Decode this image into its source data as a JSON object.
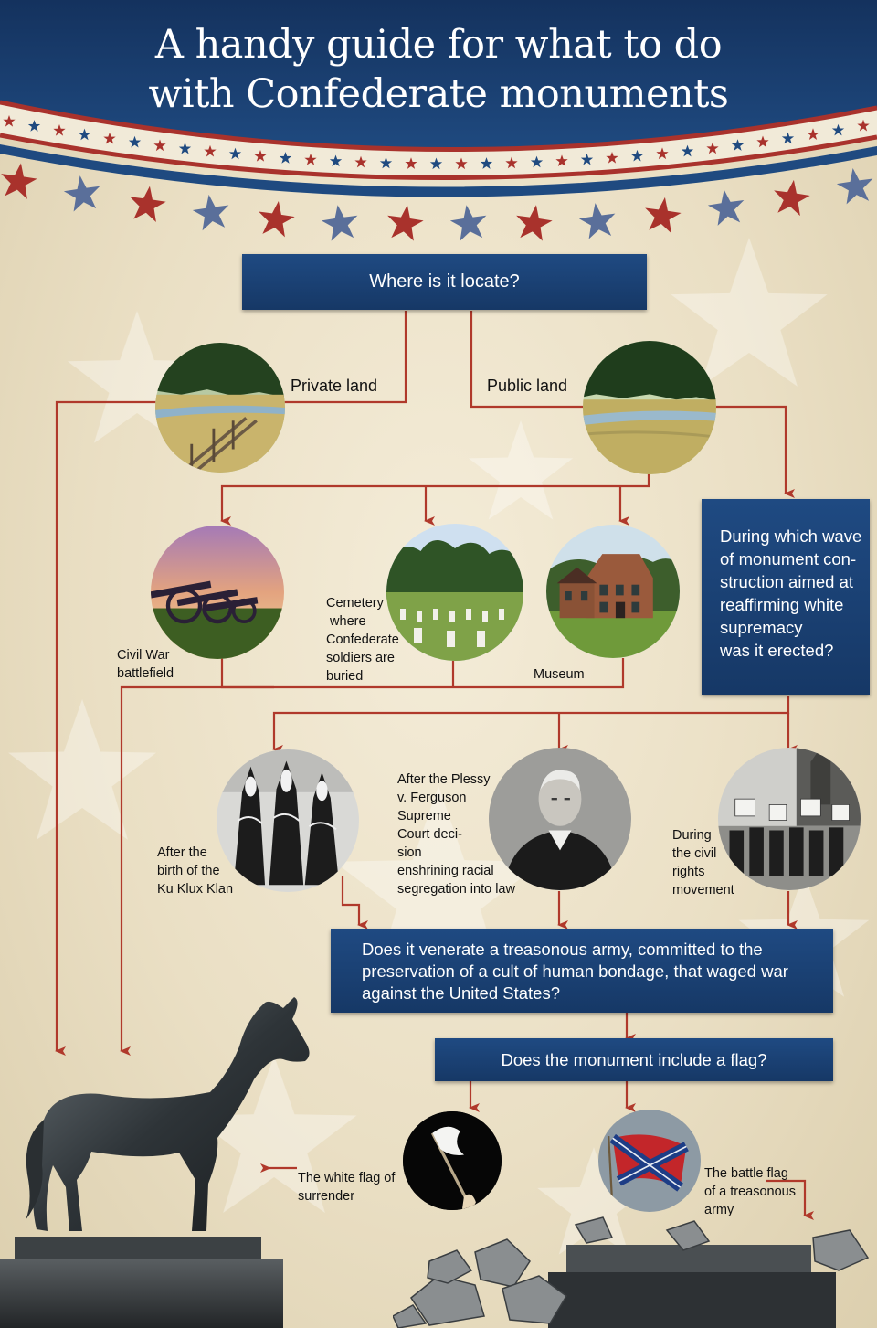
{
  "title": {
    "line1": "A handy guide for what to do",
    "line2": "with Confederate monuments"
  },
  "colors": {
    "navy": "#1b3f72",
    "arrow": "#b0392b",
    "banner_red": "#a9322c",
    "star_blue": "#5a6f9a"
  },
  "questions": {
    "location": "Where is it locate?",
    "wave": [
      "During which wave",
      "of monument con-",
      "struction aimed at",
      "reaffirming white",
      "supremacy",
      "was it erected?"
    ],
    "venerate": [
      "Does it venerate a treasonous army, committed to the",
      "preservation of a cult of human bondage, that waged war",
      "against the United States?"
    ],
    "flag": "Does the monument include a flag?"
  },
  "options": {
    "private_land": "Private land",
    "public_land": "Public land",
    "battlefield": [
      "Civil War",
      "battlefield"
    ],
    "cemetery": [
      "Cemetery",
      " where",
      "Confederate",
      "soldiers are",
      "buried"
    ],
    "museum": "Museum",
    "klan": [
      "After the",
      "birth of the",
      "Ku Klux Klan"
    ],
    "plessy": [
      "After the Plessy",
      "v. Ferguson",
      "Supreme",
      "Court deci-",
      "sion",
      "enshrining racial",
      "segregation into law"
    ],
    "civil_rights": [
      "During",
      "the civil",
      "rights",
      "movement"
    ],
    "white_flag": [
      "The white flag of",
      "surrender"
    ],
    "battle_flag": [
      "The battle flag",
      "of a treasonous",
      "army"
    ]
  },
  "icons": [
    "horse-statue-icon",
    "rubble-icon",
    "star-icon",
    "field-photo-icon",
    "cannon-photo-icon",
    "cemetery-photo-icon",
    "museum-photo-icon",
    "klan-photo-icon",
    "judge-photo-icon",
    "protest-photo-icon",
    "white-flag-icon",
    "battle-flag-icon"
  ]
}
